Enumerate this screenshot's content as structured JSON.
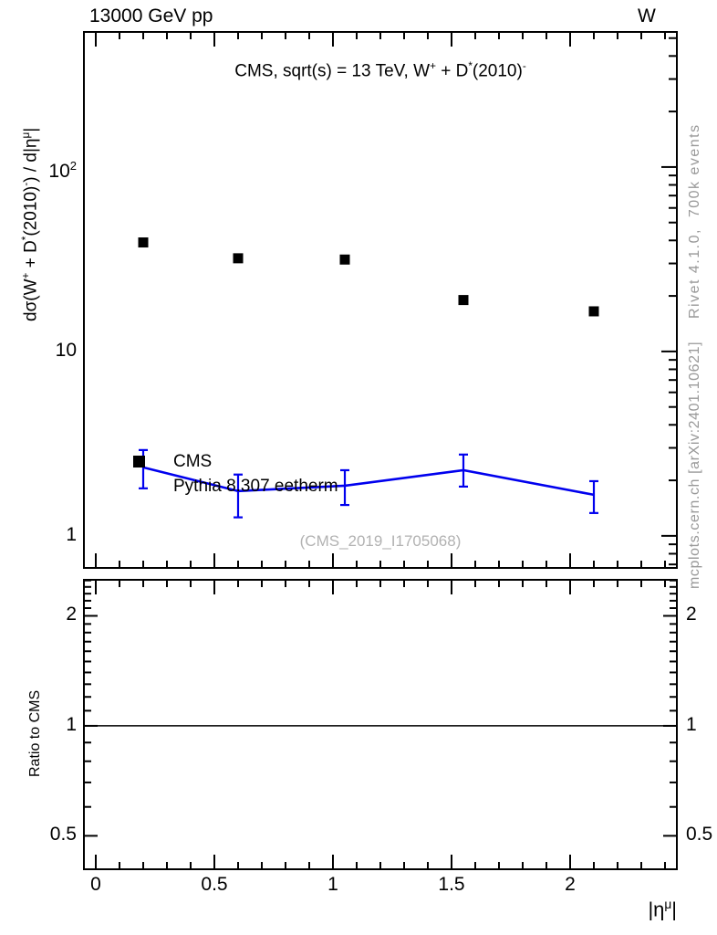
{
  "labels": {
    "header_left": "13000 GeV pp",
    "header_right": "W",
    "panel_title": {
      "p1": "CMS, sqrt(s) = 13 TeV, W",
      "s1": "+",
      "p2": " + D",
      "s2": "*",
      "p3": "(2010)",
      "s3": "-"
    },
    "y_axis": {
      "p1": "dσ(W",
      "s1": "+",
      "p2": " + D",
      "s2": "*",
      "p3": "(2010)",
      "s3": "-",
      "p4": ") / d|η",
      "s4": "μ",
      "p5": "|"
    },
    "x_axis": {
      "p1": "|η",
      "s1": "μ",
      "p2": "|"
    },
    "ratio_y_axis": "Ratio to CMS",
    "legend_cms": "CMS",
    "legend_mc": "Pythia 8.307 eetherm",
    "watermark": "(CMS_2019_I1705068)",
    "note_top": "Rivet 4.1.0,  700k events",
    "note_bottom": "mcplots.cern.ch [arXiv:2401.10621]"
  },
  "colors": {
    "cms": "#000000",
    "mc": "#0000ee",
    "frame": "#000000",
    "note": "#999999",
    "watermark": "#b2b2b2"
  },
  "chart_data": {
    "type": "line",
    "title": "CMS, sqrt(s) = 13 TeV, W+ + D*(2010)-",
    "xlabel": "|eta^mu|",
    "ylabel": "dsigma(W+ + D*(2010)-) / d|eta^mu|",
    "x_range": [
      -0.05,
      2.45
    ],
    "y_scale": "log",
    "y_range": [
      0.67,
      540
    ],
    "grid": false,
    "legend_position": "top-left-inside",
    "x_ticks": {
      "values": [
        0,
        0.5,
        1,
        1.5,
        2
      ],
      "labels": [
        "0",
        "0.5",
        "1",
        "1.5",
        "2"
      ],
      "minor_step": 0.1
    },
    "y_ticks": {
      "values": [
        1,
        10,
        100
      ],
      "labels": [
        {
          "t": "1"
        },
        {
          "t": "10"
        },
        {
          "t": "10",
          "sup": "2"
        }
      ]
    },
    "series": [
      {
        "name": "CMS",
        "type": "scatter",
        "marker": "filled-square",
        "color": "#000000",
        "x": [
          0.2,
          0.6,
          1.05,
          1.55,
          2.1
        ],
        "y": [
          39,
          32,
          31.5,
          19,
          16.5
        ]
      },
      {
        "name": "Pythia 8.307 eetherm",
        "type": "line-errorbar",
        "color": "#0000ee",
        "x": [
          0.2,
          0.6,
          1.05,
          1.55,
          2.1
        ],
        "y": [
          2.35,
          1.75,
          1.87,
          2.27,
          1.67
        ],
        "y_lo": [
          1.81,
          1.26,
          1.47,
          1.85,
          1.33
        ],
        "y_hi": [
          2.92,
          2.15,
          2.27,
          2.76,
          1.98
        ]
      }
    ],
    "ratio_panel": {
      "ylabel": "Ratio to CMS",
      "y_scale": "log",
      "y_range": [
        0.405,
        2.51
      ],
      "y_ticks": {
        "values": [
          0.5,
          1,
          2
        ],
        "labels": [
          "0.5",
          "1",
          "2"
        ],
        "minor_step": 0.1
      },
      "reference_line_y": 1,
      "series_visible": []
    }
  }
}
